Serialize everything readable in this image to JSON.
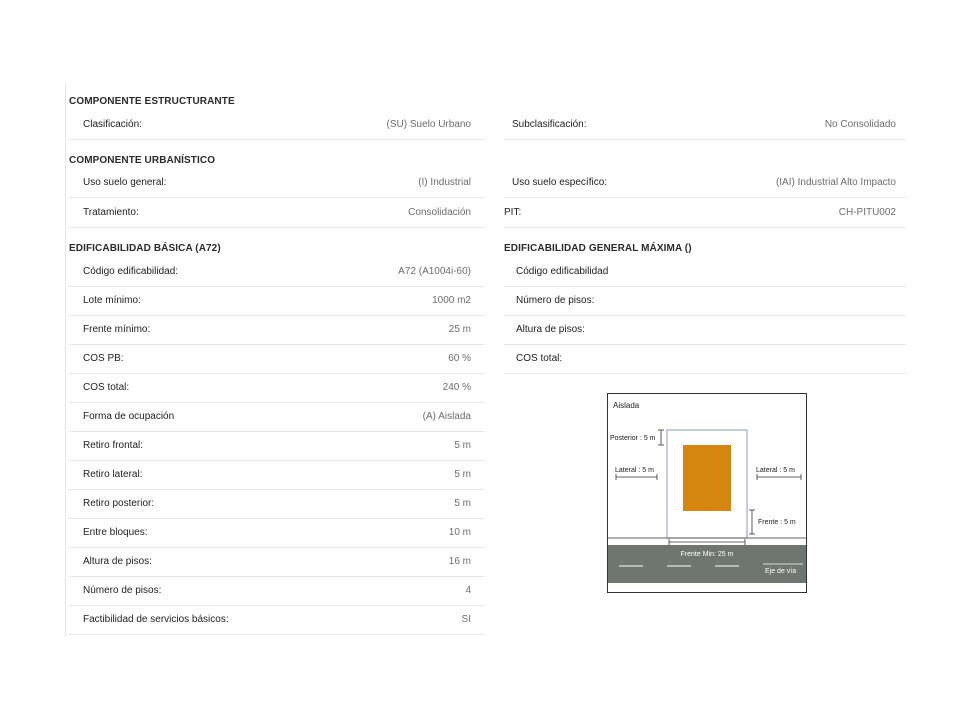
{
  "estructurante": {
    "title": "COMPONENTE ESTRUCTURANTE",
    "clasificacion": {
      "label": "Clasificación:",
      "value": "(SU) Suelo Urbano"
    },
    "subclasificacion": {
      "label": "Subclasificación:",
      "value": "No Consolidado"
    }
  },
  "urbanistico": {
    "title": "COMPONENTE URBANÍSTICO",
    "uso_general": {
      "label": "Uso suelo general:",
      "value": "(I) Industrial"
    },
    "uso_especifico": {
      "label": "Uso suelo específico:",
      "value": "(IAI) Industrial Alto Impacto"
    },
    "tratamiento": {
      "label": "Tratamiento:",
      "value": "Consolidación"
    },
    "pit": {
      "label": "PIT:",
      "value": "CH-PITU002"
    }
  },
  "basica": {
    "title": "EDIFICABILIDAD BÁSICA (A72)",
    "rows": [
      {
        "label": "Código edificabilidad:",
        "value": "A72 (A1004i-60)"
      },
      {
        "label": "Lote mínimo:",
        "value": "1000 m2"
      },
      {
        "label": "Frente mínimo:",
        "value": "25 m"
      },
      {
        "label": "COS PB:",
        "value": "60 %"
      },
      {
        "label": "COS total:",
        "value": "240 %"
      },
      {
        "label": "Forma de ocupación",
        "value": "(A) Aislada"
      },
      {
        "label": "Retiro frontal:",
        "value": "5 m"
      },
      {
        "label": "Retiro lateral:",
        "value": "5 m"
      },
      {
        "label": "Retiro posterior:",
        "value": "5 m"
      },
      {
        "label": "Entre bloques:",
        "value": "10 m"
      },
      {
        "label": "Altura de pisos:",
        "value": "16 m"
      },
      {
        "label": "Número de pisos:",
        "value": "4"
      },
      {
        "label": "Factibilidad de servicios básicos:",
        "value": "SI"
      }
    ]
  },
  "maxima": {
    "title": "EDIFICABILIDAD GENERAL MÁXIMA ()",
    "rows": [
      {
        "label": "Código edificabilidad",
        "value": ""
      },
      {
        "label": "Número de pisos:",
        "value": ""
      },
      {
        "label": "Altura de pisos:",
        "value": ""
      },
      {
        "label": "COS total:",
        "value": ""
      }
    ]
  },
  "diagram": {
    "title": "Aislada",
    "posterior": "Posterior : 5 m",
    "lateral_left": "Lateral : 5 m",
    "lateral_right": "Lateral : 5 m",
    "frente": "Frente : 5 m",
    "frente_min": "Frente Min: 25 m",
    "eje": "Eje de vía",
    "colors": {
      "building": "#d4860f",
      "road": "#6f7571",
      "lot_border": "#8a9bc2"
    }
  }
}
